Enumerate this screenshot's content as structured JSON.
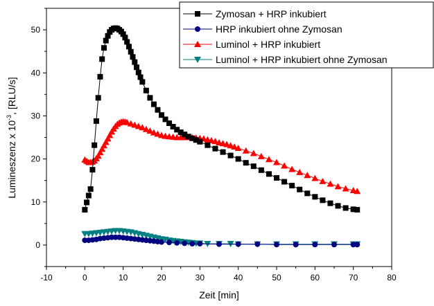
{
  "chart_data": {
    "type": "scatter",
    "xlabel": "Zeit [min]",
    "ylabel_main": "Lumineszenz x 10",
    "ylabel_exponent": "-3",
    "ylabel_unit": ", [RLU/s]",
    "xlim": [
      -10,
      80
    ],
    "ylim": [
      -5,
      55
    ],
    "xticks": [
      -10,
      0,
      10,
      20,
      30,
      40,
      50,
      60,
      70,
      80
    ],
    "yticks": [
      0,
      10,
      20,
      30,
      40,
      50
    ],
    "legend_position": "top-right",
    "grid": false,
    "series": [
      {
        "name": "Zymosan + HRP inkubiert",
        "color": "#000000",
        "marker": "square",
        "connected": true,
        "points": [
          [
            0,
            8.2
          ],
          [
            0.5,
            9.9
          ],
          [
            1,
            11.5
          ],
          [
            1.5,
            13
          ],
          [
            2,
            17.5
          ],
          [
            2.5,
            23.2
          ],
          [
            3,
            28.8
          ],
          [
            3.5,
            34.2
          ],
          [
            4,
            39.1
          ],
          [
            4.5,
            43.2
          ],
          [
            5,
            45.8
          ],
          [
            5.5,
            47.5
          ],
          [
            6,
            48.6
          ],
          [
            6.5,
            49.5
          ],
          [
            7,
            50
          ],
          [
            7.5,
            50.3
          ],
          [
            8,
            50.4
          ],
          [
            8.5,
            50.3
          ],
          [
            9,
            50
          ],
          [
            9.5,
            49.6
          ],
          [
            10,
            49
          ],
          [
            10.5,
            48.2
          ],
          [
            11,
            47.2
          ],
          [
            11.5,
            46.1
          ],
          [
            12,
            44.9
          ],
          [
            12.5,
            43.7
          ],
          [
            13,
            42.5
          ],
          [
            13.5,
            41.3
          ],
          [
            14,
            40.1
          ],
          [
            14.5,
            39
          ],
          [
            15,
            37.9
          ],
          [
            16,
            35.9
          ],
          [
            17,
            34.2
          ],
          [
            18,
            32.7
          ],
          [
            19,
            31.4
          ],
          [
            20,
            30.2
          ],
          [
            21,
            29.2
          ],
          [
            22,
            28.3
          ],
          [
            23,
            27.5
          ],
          [
            24,
            26.8
          ],
          [
            25,
            26.2
          ],
          [
            26,
            25.7
          ],
          [
            27,
            25.2
          ],
          [
            28,
            24.8
          ],
          [
            29,
            24.4
          ],
          [
            30,
            24
          ],
          [
            32,
            23.2
          ],
          [
            34,
            22.4
          ],
          [
            36,
            21.6
          ],
          [
            38,
            20.8
          ],
          [
            40,
            20
          ],
          [
            42,
            19.1
          ],
          [
            44,
            18.3
          ],
          [
            46,
            17.4
          ],
          [
            48,
            16.5
          ],
          [
            50,
            15.6
          ],
          [
            52,
            14.7
          ],
          [
            54,
            13.8
          ],
          [
            56,
            12.9
          ],
          [
            58,
            12
          ],
          [
            60,
            11.2
          ],
          [
            62,
            10.4
          ],
          [
            64,
            9.7
          ],
          [
            66,
            9.1
          ],
          [
            68,
            8.6
          ],
          [
            70,
            8.3
          ],
          [
            71,
            8.2
          ]
        ]
      },
      {
        "name": "HRP inkubiert ohne Zymosan",
        "color": "#000080",
        "marker": "circle",
        "connected": true,
        "points": [
          [
            0,
            1.1
          ],
          [
            1,
            1.1
          ],
          [
            2,
            1.2
          ],
          [
            3,
            1.3
          ],
          [
            4,
            1.5
          ],
          [
            5,
            1.6
          ],
          [
            6,
            1.7
          ],
          [
            7,
            1.8
          ],
          [
            8,
            1.8
          ],
          [
            9,
            1.8
          ],
          [
            10,
            1.7
          ],
          [
            11,
            1.6
          ],
          [
            12,
            1.5
          ],
          [
            13,
            1.4
          ],
          [
            14,
            1.3
          ],
          [
            15,
            1.2
          ],
          [
            16,
            1.1
          ],
          [
            17,
            1
          ],
          [
            18,
            0.9
          ],
          [
            19,
            0.8
          ],
          [
            20,
            0.7
          ],
          [
            22,
            0.6
          ],
          [
            24,
            0.5
          ],
          [
            26,
            0.4
          ],
          [
            28,
            0.3
          ],
          [
            30,
            0.3
          ],
          [
            35,
            0.2
          ],
          [
            40,
            0.2
          ],
          [
            45,
            0.2
          ],
          [
            50,
            0.1
          ],
          [
            55,
            0.1
          ],
          [
            60,
            0.1
          ],
          [
            65,
            0.1
          ],
          [
            70,
            0.1
          ],
          [
            71,
            0.1
          ]
        ]
      },
      {
        "name": "Luminol + HRP inkubiert",
        "color": "#ff0000",
        "marker": "triangle-up",
        "connected": true,
        "points": [
          [
            0,
            19.8
          ],
          [
            0.5,
            19.5
          ],
          [
            1,
            19.2
          ],
          [
            1.5,
            19.2
          ],
          [
            2,
            19.3
          ],
          [
            2.5,
            19.6
          ],
          [
            3,
            20.1
          ],
          [
            3.5,
            20.7
          ],
          [
            4,
            21.5
          ],
          [
            4.5,
            22.3
          ],
          [
            5,
            23.1
          ],
          [
            5.5,
            23.9
          ],
          [
            6,
            24.7
          ],
          [
            6.5,
            25.5
          ],
          [
            7,
            26.3
          ],
          [
            7.5,
            27
          ],
          [
            8,
            27.6
          ],
          [
            8.5,
            28.1
          ],
          [
            9,
            28.4
          ],
          [
            9.5,
            28.6
          ],
          [
            10,
            28.7
          ],
          [
            10.5,
            28.6
          ],
          [
            11,
            28.5
          ],
          [
            12,
            28.2
          ],
          [
            13,
            27.9
          ],
          [
            14,
            27.6
          ],
          [
            15,
            27.3
          ],
          [
            16,
            26.9
          ],
          [
            17,
            26.5
          ],
          [
            18,
            26.1
          ],
          [
            19,
            25.8
          ],
          [
            20,
            25.5
          ],
          [
            21,
            25.3
          ],
          [
            22,
            25.2
          ],
          [
            23,
            25.1
          ],
          [
            24,
            25
          ],
          [
            25,
            25
          ],
          [
            26,
            25
          ],
          [
            27,
            25
          ],
          [
            28,
            25
          ],
          [
            29,
            24.9
          ],
          [
            30,
            24.8
          ],
          [
            31,
            24.7
          ],
          [
            32,
            24.5
          ],
          [
            33,
            24.3
          ],
          [
            34,
            24.1
          ],
          [
            35,
            23.8
          ],
          [
            36,
            23.6
          ],
          [
            37,
            23.4
          ],
          [
            38,
            23.1
          ],
          [
            39,
            22.8
          ],
          [
            40,
            22.5
          ],
          [
            42,
            21.9
          ],
          [
            44,
            21.3
          ],
          [
            46,
            20.6
          ],
          [
            48,
            19.9
          ],
          [
            50,
            19.2
          ],
          [
            52,
            18.4
          ],
          [
            54,
            17.6
          ],
          [
            56,
            16.9
          ],
          [
            58,
            16.2
          ],
          [
            60,
            15.5
          ],
          [
            62,
            14.8
          ],
          [
            64,
            14.2
          ],
          [
            66,
            13.6
          ],
          [
            68,
            13.1
          ],
          [
            70,
            12.7
          ],
          [
            71,
            12.5
          ]
        ]
      },
      {
        "name": "Luminol + HRP inkubiert ohne Zymosan",
        "color": "#008080",
        "marker": "triangle-down",
        "connected": true,
        "points": [
          [
            0,
            2.6
          ],
          [
            1,
            2.6
          ],
          [
            2,
            2.7
          ],
          [
            3,
            2.8
          ],
          [
            4,
            2.9
          ],
          [
            5,
            3
          ],
          [
            6,
            3.1
          ],
          [
            7,
            3.2
          ],
          [
            8,
            3.3
          ],
          [
            9,
            3.3
          ],
          [
            10,
            3.2
          ],
          [
            11,
            3.1
          ],
          [
            12,
            3
          ],
          [
            13,
            2.8
          ],
          [
            14,
            2.6
          ],
          [
            15,
            2.4
          ],
          [
            16,
            2.2
          ],
          [
            17,
            2
          ],
          [
            18,
            1.8
          ],
          [
            19,
            1.6
          ],
          [
            20,
            1.4
          ],
          [
            21,
            1.3
          ],
          [
            22,
            1.1
          ],
          [
            23,
            1
          ],
          [
            24,
            0.9
          ],
          [
            25,
            0.8
          ],
          [
            26,
            0.7
          ],
          [
            27,
            0.6
          ],
          [
            28,
            0.5
          ],
          [
            29,
            0.4
          ],
          [
            30,
            0.4
          ],
          [
            32,
            0.3
          ],
          [
            35,
            0.3
          ],
          [
            38,
            0.3
          ],
          [
            40,
            0.2
          ],
          [
            45,
            0.2
          ],
          [
            50,
            0.2
          ],
          [
            55,
            0.2
          ],
          [
            60,
            0.2
          ],
          [
            65,
            0.2
          ],
          [
            70,
            0.2
          ],
          [
            71,
            0.2
          ]
        ]
      }
    ]
  }
}
